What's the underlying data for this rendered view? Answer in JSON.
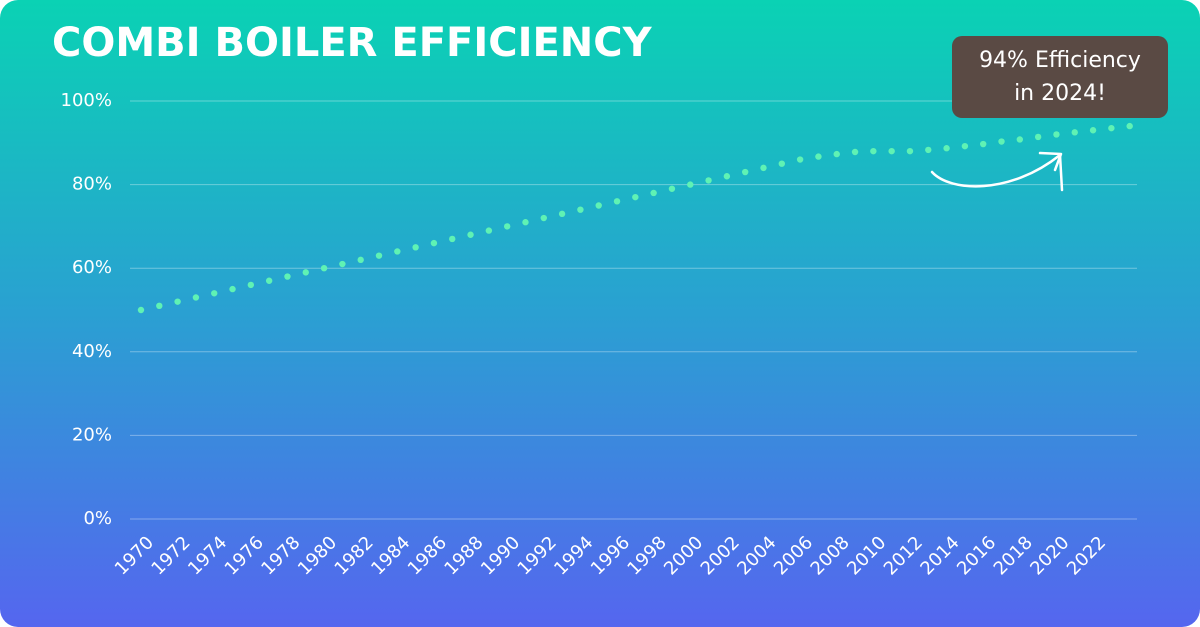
{
  "chart_data": {
    "type": "scatter",
    "title": "COMBI BOILER EFFICIENCY",
    "annotation": [
      "94% Efficiency",
      "in 2024!"
    ],
    "x": [
      1970,
      1971,
      1972,
      1973,
      1974,
      1975,
      1976,
      1977,
      1978,
      1979,
      1980,
      1981,
      1982,
      1983,
      1984,
      1985,
      1986,
      1987,
      1988,
      1989,
      1990,
      1991,
      1992,
      1993,
      1994,
      1995,
      1996,
      1997,
      1998,
      1999,
      2000,
      2001,
      2002,
      2003,
      2004,
      2005,
      2006,
      2007,
      2008,
      2009,
      2010,
      2011,
      2012,
      2013,
      2014,
      2015,
      2016,
      2017,
      2018,
      2019,
      2020,
      2021,
      2022,
      2023,
      2024
    ],
    "values": [
      50,
      51,
      52,
      53,
      54,
      55,
      56,
      57,
      58,
      59,
      60,
      61,
      62,
      63,
      64,
      65,
      66,
      67,
      68,
      69,
      70,
      71,
      72,
      73,
      74,
      75,
      76,
      77,
      78,
      79,
      80,
      81,
      82,
      83,
      84,
      85,
      86,
      86.7,
      87.3,
      87.8,
      88,
      88,
      88,
      88.3,
      88.7,
      89.2,
      89.7,
      90.3,
      90.8,
      91.4,
      92,
      92.5,
      93,
      93.5,
      94
    ],
    "color": "#5ff2b4",
    "xlim": [
      1969.4,
      2024.4
    ],
    "xticks": [
      1970,
      1972,
      1974,
      1976,
      1978,
      1980,
      1982,
      1984,
      1986,
      1988,
      1990,
      1992,
      1994,
      1996,
      1998,
      2000,
      2002,
      2004,
      2006,
      2008,
      2010,
      2012,
      2014,
      2016,
      2018,
      2020,
      2022
    ],
    "ylim": [
      0,
      100
    ],
    "yticks": [
      {
        "value": 0,
        "label": "0%"
      },
      {
        "value": 20,
        "label": "20%"
      },
      {
        "value": 40,
        "label": "40%"
      },
      {
        "value": 60,
        "label": "60%"
      },
      {
        "value": 80,
        "label": "80%"
      },
      {
        "value": 100,
        "label": "100%"
      }
    ],
    "grid": true
  }
}
